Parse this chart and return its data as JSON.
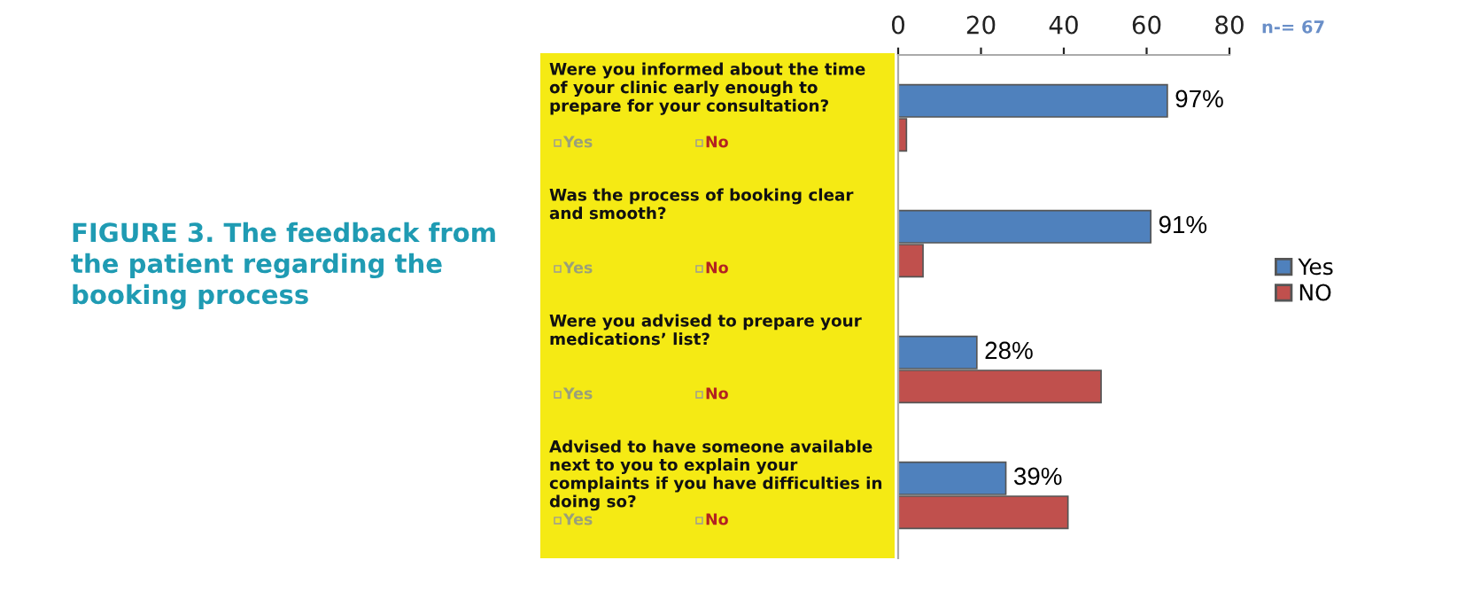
{
  "chart_data": {
    "type": "bar",
    "orientation": "horizontal",
    "title": "FIGURE 3. The feedback from the patient regarding the booking process",
    "categories": [
      "Were you informed about the time of your clinic early enough to prepare for your consultation?",
      "Was the process of booking clear and smooth?",
      "Were you advised to prepare your medications’ list?",
      "Advised to have someone available next to you to explain your complaints if you have difficulties in doing so?"
    ],
    "series": [
      {
        "name": "Yes",
        "color": "#4f81bd",
        "values": [
          65,
          61,
          19,
          26
        ]
      },
      {
        "name": "NO",
        "color": "#c0504d",
        "values": [
          2,
          6,
          49,
          41
        ]
      }
    ],
    "xlim": [
      0,
      80
    ],
    "xticks": [
      0,
      20,
      40,
      60,
      80
    ],
    "grid": false,
    "legend": "right",
    "annotations": [
      "n-= 67",
      "Yes",
      "No",
      "Yes",
      "No",
      "Yes",
      "No",
      "Yes",
      "No",
      {
        "text": "97%",
        "x": 65,
        "y": "Were you informed about the time of your clinic early enough to prepare for your consultation?"
      },
      {
        "text": "91%",
        "x": 61,
        "y": "Was the process of booking clear and smooth?"
      },
      {
        "text": "28%",
        "x": 19,
        "y": "Were you advised to prepare your medications’ list?"
      },
      {
        "text": "39%",
        "x": 26,
        "y": "Advised to have someone available next to you to explain your complaints if you have difficulties in doing so?"
      }
    ]
  }
}
